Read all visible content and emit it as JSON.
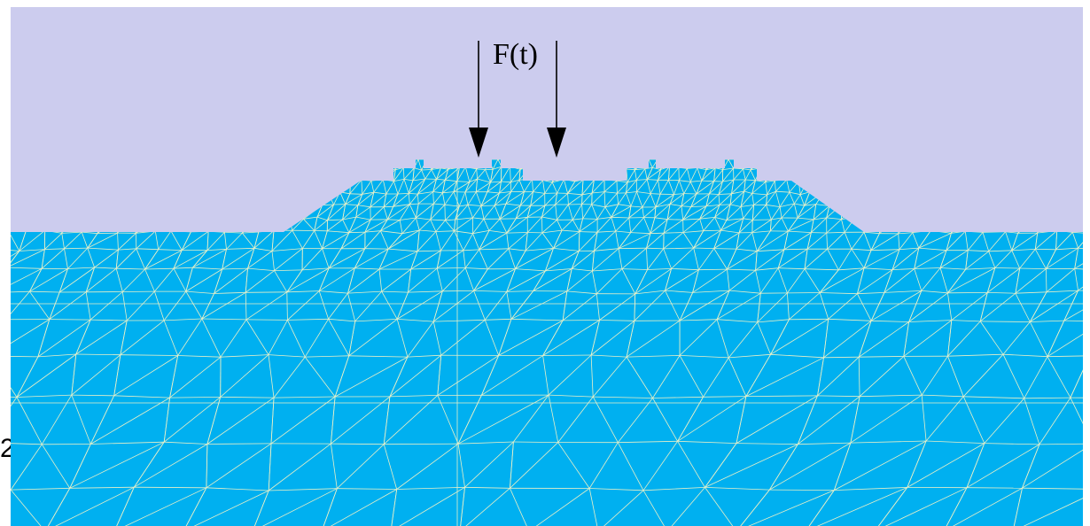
{
  "load": {
    "label": "F(t)",
    "arrow_count": 2,
    "arrow_direction": "down"
  },
  "side_label": "2",
  "colors": {
    "background": "#ffffff",
    "sky": "#ccccee",
    "domain_fill": "#00b0f0",
    "mesh_lines": "#e8f0c8",
    "arrows": "#000000",
    "text": "#000000"
  }
}
